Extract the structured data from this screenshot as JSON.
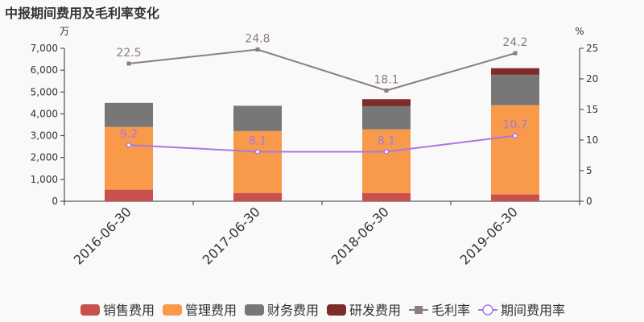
{
  "chart_data": {
    "type": "bar",
    "title": "中报期间费用及毛利率变化",
    "categories": [
      "2016-06-30",
      "2017-06-30",
      "2018-06-30",
      "2019-06-30"
    ],
    "left_axis": {
      "unit": "万",
      "ylim": [
        0,
        7000
      ],
      "ticks": [
        "0",
        "1,000",
        "2,000",
        "3,000",
        "4,000",
        "5,000",
        "6,000",
        "7,000"
      ]
    },
    "right_axis": {
      "unit": "%",
      "ylim": [
        0,
        25
      ],
      "ticks": [
        "0",
        "5",
        "10",
        "15",
        "20",
        "25"
      ]
    },
    "bar_series": [
      {
        "name": "销售费用",
        "color": "#c9504f",
        "values": [
          530,
          380,
          370,
          310
        ]
      },
      {
        "name": "管理费用",
        "color": "#f9994a",
        "values": [
          2870,
          2830,
          2920,
          4090
        ]
      },
      {
        "name": "财务费用",
        "color": "#777777",
        "values": [
          1100,
          1160,
          1060,
          1390
        ]
      },
      {
        "name": "研发费用",
        "color": "#7e2b2b",
        "values": [
          0,
          0,
          320,
          300
        ]
      }
    ],
    "line_series": [
      {
        "name": "毛利率",
        "color": "#8c7b88",
        "marker": "square",
        "values": [
          22.5,
          24.8,
          18.1,
          24.2
        ],
        "labels": [
          "22.5",
          "24.8",
          "18.1",
          "24.2"
        ]
      },
      {
        "name": "期间费用率",
        "color": "#a779e0",
        "marker": "circle",
        "values": [
          9.2,
          8.1,
          8.1,
          10.7
        ],
        "labels": [
          "9.2",
          "8.1",
          "8.1",
          "10.7"
        ]
      }
    ],
    "legend_position": "bottom",
    "grid": false
  }
}
